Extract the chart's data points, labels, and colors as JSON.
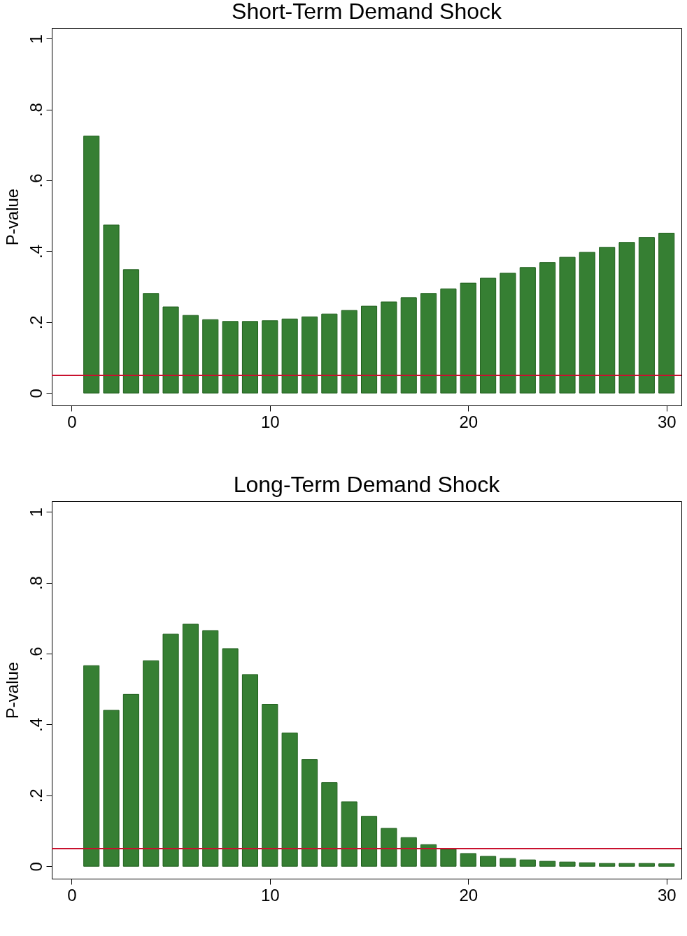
{
  "chart_data": [
    {
      "type": "bar",
      "title": "Short-Term Demand Shock",
      "ylabel": "P-value",
      "x": [
        1,
        2,
        3,
        4,
        5,
        6,
        7,
        8,
        9,
        10,
        11,
        12,
        13,
        14,
        15,
        16,
        17,
        18,
        19,
        20,
        21,
        22,
        23,
        24,
        25,
        26,
        27,
        28,
        29,
        30
      ],
      "values": [
        0.725,
        0.474,
        0.348,
        0.281,
        0.243,
        0.219,
        0.207,
        0.202,
        0.202,
        0.204,
        0.209,
        0.215,
        0.223,
        0.233,
        0.245,
        0.257,
        0.269,
        0.281,
        0.294,
        0.31,
        0.324,
        0.338,
        0.354,
        0.368,
        0.383,
        0.397,
        0.411,
        0.425,
        0.439,
        0.451
      ],
      "color": "#367f33",
      "xlim": [
        -1,
        30.75
      ],
      "xticks": [
        0,
        10,
        20,
        30
      ],
      "ylim": [
        -0.035,
        1.03
      ],
      "yticks": [
        {
          "value": 0,
          "label": "0"
        },
        {
          "value": 0.2,
          "label": ".2"
        },
        {
          "value": 0.4,
          "label": ".4"
        },
        {
          "value": 0.6,
          "label": ".6"
        },
        {
          "value": 0.8,
          "label": ".8"
        },
        {
          "value": 1,
          "label": "1"
        }
      ],
      "ref_lines": [
        {
          "axis": "y",
          "value": 0.05,
          "color": "#c8102e"
        }
      ],
      "grid": false
    },
    {
      "type": "bar",
      "title": "Long-Term Demand Shock",
      "ylabel": "P-value",
      "x": [
        1,
        2,
        3,
        4,
        5,
        6,
        7,
        8,
        9,
        10,
        11,
        12,
        13,
        14,
        15,
        16,
        17,
        18,
        19,
        20,
        21,
        22,
        23,
        24,
        25,
        26,
        27,
        28,
        29,
        30
      ],
      "values": [
        0.566,
        0.44,
        0.485,
        0.58,
        0.655,
        0.683,
        0.665,
        0.614,
        0.541,
        0.457,
        0.376,
        0.301,
        0.236,
        0.182,
        0.141,
        0.107,
        0.081,
        0.061,
        0.048,
        0.036,
        0.028,
        0.022,
        0.018,
        0.014,
        0.012,
        0.01,
        0.008,
        0.008,
        0.008,
        0.007
      ],
      "color": "#367f33",
      "xlim": [
        -1,
        30.75
      ],
      "xticks": [
        0,
        10,
        20,
        30
      ],
      "ylim": [
        -0.035,
        1.03
      ],
      "yticks": [
        {
          "value": 0,
          "label": "0"
        },
        {
          "value": 0.2,
          "label": ".2"
        },
        {
          "value": 0.4,
          "label": ".4"
        },
        {
          "value": 0.6,
          "label": ".6"
        },
        {
          "value": 0.8,
          "label": ".8"
        },
        {
          "value": 1,
          "label": "1"
        }
      ],
      "ref_lines": [
        {
          "axis": "y",
          "value": 0.05,
          "color": "#c8102e"
        }
      ],
      "grid": false
    }
  ]
}
